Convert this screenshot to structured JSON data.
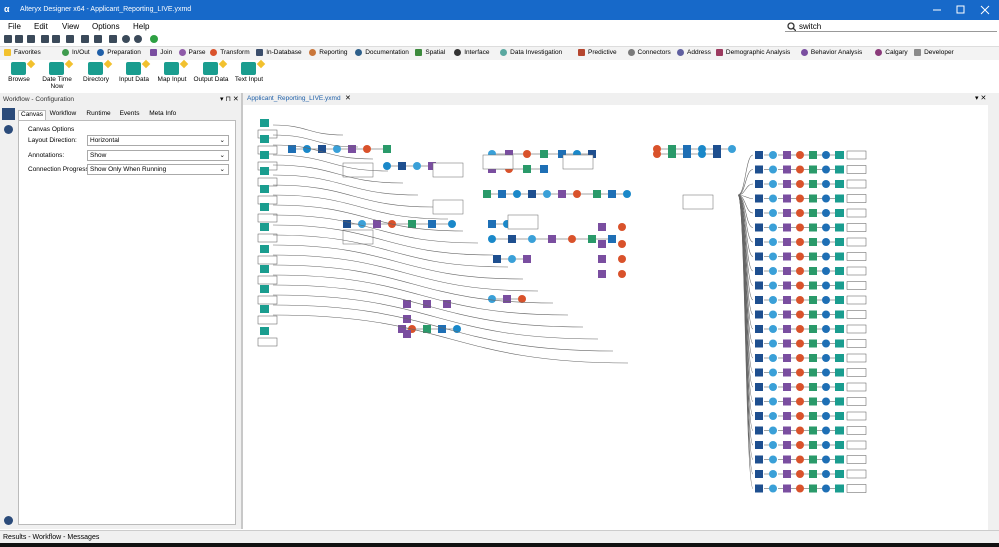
{
  "window": {
    "title": "Alteryx Designer x64 - Applicant_Reporting_LIVE.yxmd"
  },
  "menu": [
    "File",
    "Edit",
    "View",
    "Options",
    "Help"
  ],
  "search": "switch",
  "categories": [
    {
      "name": "Favorites",
      "color": "#f2c12e"
    },
    {
      "name": "In/Out",
      "color": "#3f9b4e"
    },
    {
      "name": "Preparation",
      "color": "#1f5fa8"
    },
    {
      "name": "Join",
      "color": "#7a4ea0"
    },
    {
      "name": "Parse",
      "color": "#8e5aa8"
    },
    {
      "name": "Transform",
      "color": "#d9522b"
    },
    {
      "name": "In-Database",
      "color": "#3a4d6b"
    },
    {
      "name": "Reporting",
      "color": "#c9763a"
    },
    {
      "name": "Documentation",
      "color": "#2d5f8a"
    },
    {
      "name": "Spatial",
      "color": "#3c8a3c"
    },
    {
      "name": "Interface",
      "color": "#333333"
    },
    {
      "name": "Data Investigation",
      "color": "#5aa8a0"
    },
    {
      "name": "Predictive",
      "color": "#b5452e"
    },
    {
      "name": "Connectors",
      "color": "#7a7a7a"
    },
    {
      "name": "Address",
      "color": "#5f5fa0"
    },
    {
      "name": "Demographic Analysis",
      "color": "#9c3a5f"
    },
    {
      "name": "Behavior Analysis",
      "color": "#7a4ea0"
    },
    {
      "name": "Calgary",
      "color": "#8a3a7a"
    },
    {
      "name": "Developer",
      "color": "#8a8a8a"
    }
  ],
  "palette": [
    "Browse",
    "Date Time Now",
    "Directory",
    "Input Data",
    "Map Input",
    "Output Data",
    "Text Input"
  ],
  "config": {
    "header": "Workflow - Configuration",
    "tabs": [
      "Canvas",
      "Workflow",
      "Runtime",
      "Events",
      "Meta Info"
    ],
    "section": "Canvas Options",
    "fields": [
      {
        "label": "Layout Direction:",
        "value": "Horizontal"
      },
      {
        "label": "Annotations:",
        "value": "Show"
      },
      {
        "label": "Connection Progress:",
        "value": "Show Only When Running"
      }
    ]
  },
  "canvas": {
    "tab": "Applicant_Reporting_LIVE.yxmd"
  },
  "status": "Results - Workflow - Messages"
}
